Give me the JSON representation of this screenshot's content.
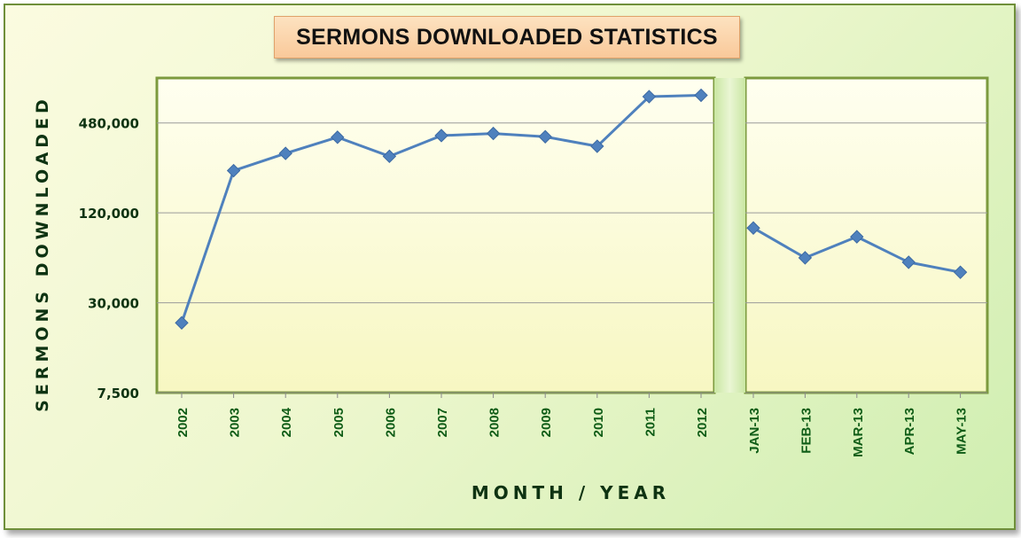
{
  "chart_data": {
    "type": "line",
    "title": "SERMONS DOWNLOADED STATISTICS",
    "xlabel": "MONTH  /  YEAR",
    "ylabel": "SERMONS  DOWNLOADED",
    "y_scale": "log2",
    "ylim": [
      7500,
      960000
    ],
    "y_ticks": [
      7500,
      30000,
      120000,
      480000
    ],
    "y_tick_labels": [
      "7,500",
      "30,000",
      "120,000",
      "480,000"
    ],
    "grid": true,
    "legend": "none",
    "line_color": "#4f81bd",
    "panels": [
      {
        "categories": [
          "2002",
          "2003",
          "2004",
          "2005",
          "2006",
          "2007",
          "2008",
          "2009",
          "2010",
          "2011",
          "2012"
        ],
        "values": [
          22000,
          230000,
          300000,
          385000,
          287000,
          395000,
          408000,
          388000,
          335000,
          720000,
          735000
        ]
      },
      {
        "categories": [
          "JAN-13",
          "FEB-13",
          "MAR-13",
          "APR-13",
          "MAY-13"
        ],
        "values": [
          95000,
          60000,
          83000,
          56000,
          48000
        ]
      }
    ]
  }
}
